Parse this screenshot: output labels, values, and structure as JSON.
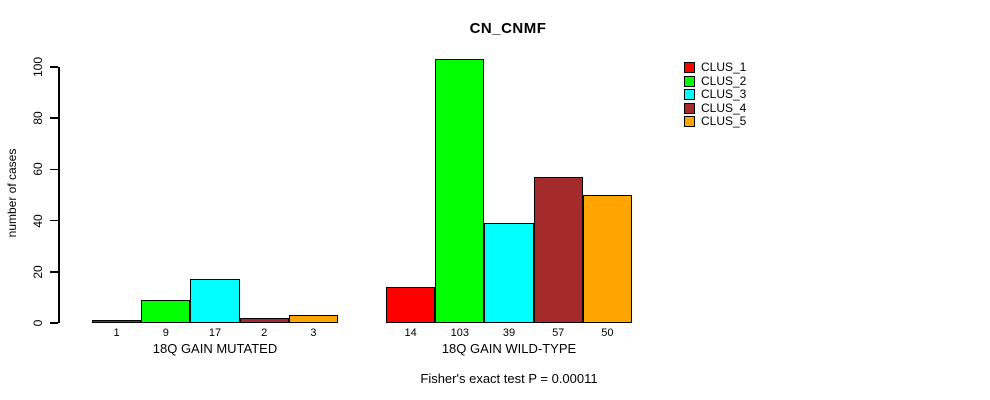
{
  "chart_data": {
    "type": "bar",
    "title": "CN_CNMF",
    "ylabel": "number of cases",
    "xlabel": "",
    "ylim": [
      0,
      100
    ],
    "yticks": [
      0,
      20,
      40,
      60,
      80,
      100
    ],
    "grid": false,
    "legend_position": "top-right",
    "categories": [
      "18Q GAIN MUTATED",
      "18Q GAIN WILD-TYPE"
    ],
    "series": [
      {
        "name": "CLUS_1",
        "color": "#FF0000",
        "values": [
          1,
          14
        ]
      },
      {
        "name": "CLUS_2",
        "color": "#00FF00",
        "values": [
          9,
          103
        ]
      },
      {
        "name": "CLUS_3",
        "color": "#00FFFF",
        "values": [
          17,
          39
        ]
      },
      {
        "name": "CLUS_4",
        "color": "#A52A2A",
        "values": [
          2,
          57
        ]
      },
      {
        "name": "CLUS_5",
        "color": "#FFA500",
        "values": [
          3,
          50
        ]
      }
    ],
    "bar_value_labels": true,
    "annotation": "Fisher's exact test P = 0.00011"
  }
}
